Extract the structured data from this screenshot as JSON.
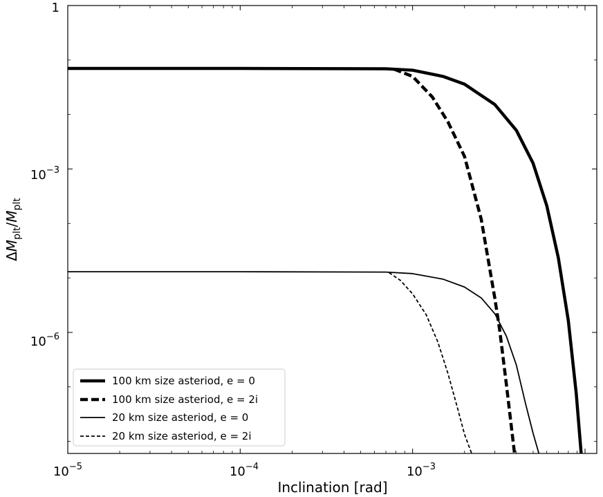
{
  "chart_data": {
    "type": "line",
    "xlabel": "Inclination [rad]",
    "ylabel_parts": {
      "delta": "Δ",
      "M": "M",
      "sub1": "plt",
      "slash": "/",
      "M2": "M",
      "sub2": "plt"
    },
    "xscale": "log",
    "yscale": "log",
    "xlim": [
      1e-05,
      0.0117
    ],
    "ylim": [
      6e-09,
      1
    ],
    "x_ticks": [
      {
        "value": 1e-05,
        "base": "10",
        "exp": "−5"
      },
      {
        "value": 0.0001,
        "base": "10",
        "exp": "−4"
      },
      {
        "value": 0.001,
        "base": "10",
        "exp": "−3"
      }
    ],
    "y_ticks": [
      {
        "value": 1,
        "text": "1"
      },
      {
        "value": 0.001,
        "base": "10",
        "exp": "−3"
      },
      {
        "value": 1e-06,
        "base": "10",
        "exp": "−6"
      }
    ],
    "grid": false,
    "legend_position": "lower-left",
    "series": [
      {
        "name": "100 km size asteriod,  e = 0",
        "style": "solid",
        "weight": "thick",
        "x": [
          1e-05,
          0.0001,
          0.0007,
          0.001,
          0.0015,
          0.002,
          0.003,
          0.004,
          0.005,
          0.006,
          0.007,
          0.008,
          0.0089,
          0.0095
        ],
        "y": [
          0.07,
          0.07,
          0.069,
          0.065,
          0.05,
          0.036,
          0.0152,
          0.0051,
          0.00127,
          0.000212,
          2.35e-05,
          1.65e-06,
          7.4e-08,
          6e-09
        ]
      },
      {
        "name": "100 km size asteriod,  e = 2i",
        "style": "dashed",
        "weight": "thick",
        "x": [
          0.00078,
          0.001,
          0.0013,
          0.0016,
          0.002,
          0.0025,
          0.003,
          0.0032,
          0.0035,
          0.0039
        ],
        "y": [
          0.068,
          0.05,
          0.021,
          0.0074,
          0.0017,
          0.00012,
          4.2e-06,
          1.1e-06,
          1.1e-07,
          6e-09
        ]
      },
      {
        "name": "20 km size asteriod, e = 0",
        "style": "solid",
        "weight": "thin",
        "x": [
          1e-05,
          0.0001,
          0.0007,
          0.001,
          0.0015,
          0.002,
          0.0025,
          0.003,
          0.0035,
          0.004,
          0.0045,
          0.005,
          0.0054
        ],
        "y": [
          1.3e-05,
          1.3e-05,
          1.28e-05,
          1.2e-05,
          9.5e-06,
          6.8e-06,
          4.3e-06,
          2.2e-06,
          8.5e-07,
          2.5e-07,
          5.2e-08,
          1.4e-08,
          6e-09
        ]
      },
      {
        "name": "20 km size asteriod, e = 2i",
        "style": "dashed",
        "weight": "thin",
        "x": [
          0.00073,
          0.00085,
          0.001,
          0.0012,
          0.0014,
          0.0016,
          0.0018,
          0.002,
          0.0022
        ],
        "y": [
          1.25e-05,
          9e-06,
          5.1e-06,
          2.1e-06,
          6.7e-07,
          1.8e-07,
          4.7e-08,
          1.35e-08,
          6e-09
        ]
      }
    ]
  }
}
